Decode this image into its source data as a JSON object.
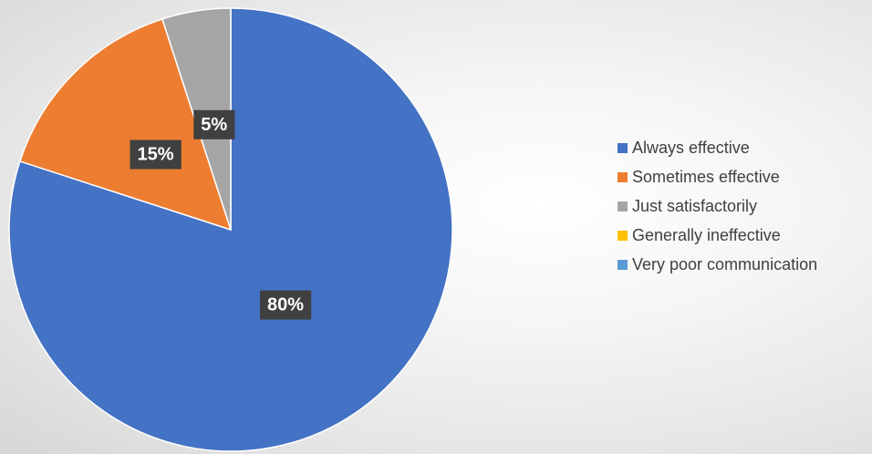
{
  "chart_data": {
    "type": "pie",
    "title": "",
    "start_angle_deg": 0,
    "direction": "clockwise",
    "slices": [
      {
        "label": "Always effective",
        "value": 80,
        "display": "80%",
        "color": "#4472C4"
      },
      {
        "label": "Sometimes effective",
        "value": 15,
        "display": "15%",
        "color": "#ED7D31"
      },
      {
        "label": "Just satisfactorily",
        "value": 5,
        "display": "5%",
        "color": "#A5A5A5"
      },
      {
        "label": "Generally ineffective",
        "value": 0,
        "display": "",
        "color": "#FFC000"
      },
      {
        "label": "Very poor communication",
        "value": 0,
        "display": "",
        "color": "#5B9BD5"
      }
    ],
    "legend_position": "right",
    "data_label_style": "white bold text on dark gray box"
  },
  "legend": {
    "items": [
      {
        "label": "Always effective",
        "color": "#4472C4"
      },
      {
        "label": "Sometimes effective",
        "color": "#ED7D31"
      },
      {
        "label": "Just satisfactorily",
        "color": "#A5A5A5"
      },
      {
        "label": "Generally ineffective",
        "color": "#FFC000"
      },
      {
        "label": "Very poor communication",
        "color": "#5B9BD5"
      }
    ]
  }
}
